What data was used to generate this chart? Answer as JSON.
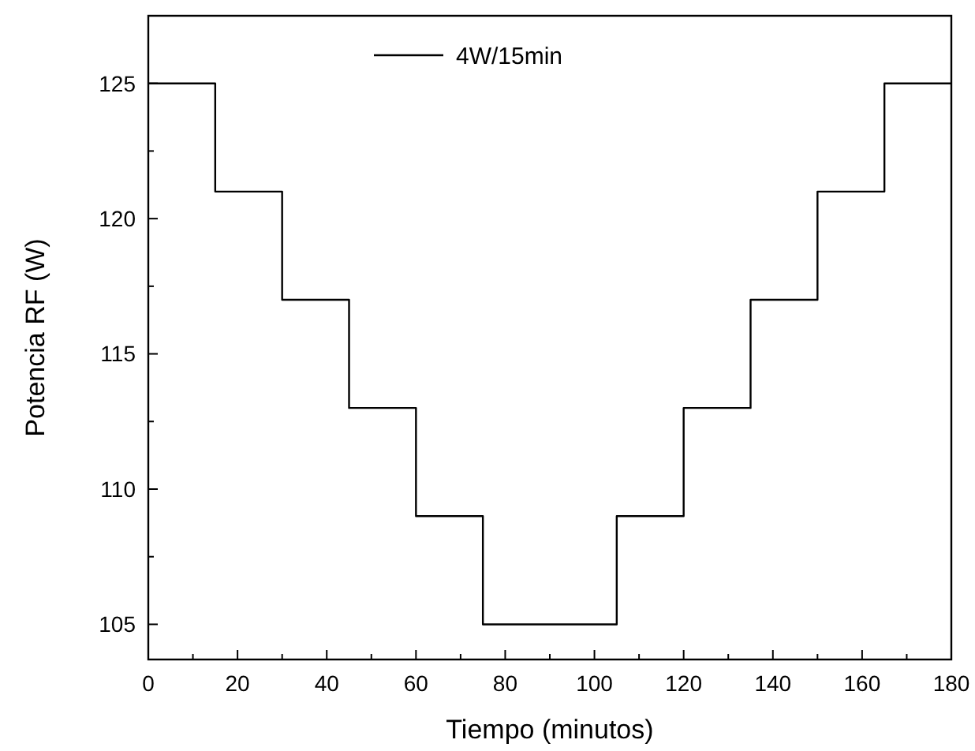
{
  "chart_data": {
    "type": "step",
    "xlabel": "Tiempo (minutos)",
    "ylabel": "Potencia RF (W)",
    "x": [
      0,
      15,
      30,
      45,
      60,
      75,
      90,
      105,
      120,
      135,
      150,
      165,
      180
    ],
    "series": [
      {
        "name": "4W/15min",
        "color": "#000000",
        "values": [
          125,
          121,
          117,
          113,
          109,
          105,
          105,
          109,
          113,
          117,
          121,
          125,
          125
        ]
      }
    ],
    "xlim": [
      0,
      180
    ],
    "ylim": [
      103.7,
      127.5
    ],
    "xticks": [
      0,
      {
        "value": 10,
        "label": null
      },
      20,
      {
        "value": 30,
        "label": null
      },
      40,
      {
        "value": 50,
        "label": null
      },
      60,
      {
        "value": 70,
        "label": null
      },
      80,
      {
        "value": 90,
        "label": null
      },
      100,
      {
        "value": 110,
        "label": null
      },
      120,
      {
        "value": 130,
        "label": null
      },
      140,
      {
        "value": 150,
        "label": null
      },
      160,
      {
        "value": 170,
        "label": null
      },
      180
    ],
    "yticks": [
      {
        "value": 105,
        "label": "105"
      },
      {
        "value": 107.5,
        "label": null
      },
      {
        "value": 110,
        "label": "110"
      },
      {
        "value": 112.5,
        "label": null
      },
      {
        "value": 115,
        "label": "115"
      },
      {
        "value": 117.5,
        "label": null
      },
      {
        "value": 120,
        "label": "120"
      },
      {
        "value": 122.5,
        "label": null
      },
      {
        "value": 125,
        "label": "125"
      }
    ],
    "legend": "top",
    "grid": false
  }
}
